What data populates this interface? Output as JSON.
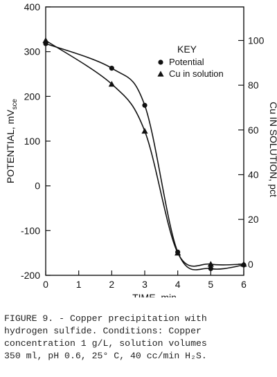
{
  "chart_data": {
    "type": "line",
    "xlabel": "TIME, min",
    "ylabel_left": "POTENTIAL, mV",
    "ylabel_left_subscript": "sce",
    "ylabel_right": "Cu IN SOLUTION, pct",
    "xlim": [
      0,
      6
    ],
    "ylim_left": [
      -200,
      400
    ],
    "ylim_right": [
      -5,
      115
    ],
    "x_ticks": [
      "0",
      "1",
      "2",
      "3",
      "4",
      "5",
      "6"
    ],
    "y_ticks_left": [
      "400",
      "300",
      "200",
      "100",
      "0",
      "-100",
      "-200"
    ],
    "y_ticks_right": [
      "100",
      "80",
      "60",
      "40",
      "20",
      "0"
    ],
    "legend": {
      "title": "KEY",
      "placement": "top-right"
    },
    "series": [
      {
        "name": "Potential",
        "axis": "left",
        "marker": "circle",
        "points": [
          [
            0,
            318
          ],
          [
            2,
            263
          ],
          [
            3,
            180
          ],
          [
            4,
            -148
          ],
          [
            5,
            -185
          ],
          [
            6,
            -177
          ]
        ]
      },
      {
        "name": "Cu in solution",
        "axis": "right",
        "marker": "triangle",
        "points": [
          [
            0,
            100
          ],
          [
            2,
            80.5
          ],
          [
            3,
            59.5
          ],
          [
            4,
            5
          ],
          [
            5,
            0
          ],
          [
            6,
            0
          ]
        ]
      }
    ],
    "grid": false
  },
  "caption": {
    "figure_label": "FIGURE 9. - Copper precipitation with",
    "lines": [
      "hydrogen sulfide.  Conditions: Copper",
      "concentration 1 g/L, solution volumes",
      "350 ml, pH 0.6, 25° C, 40 cc/min H₂S."
    ]
  }
}
